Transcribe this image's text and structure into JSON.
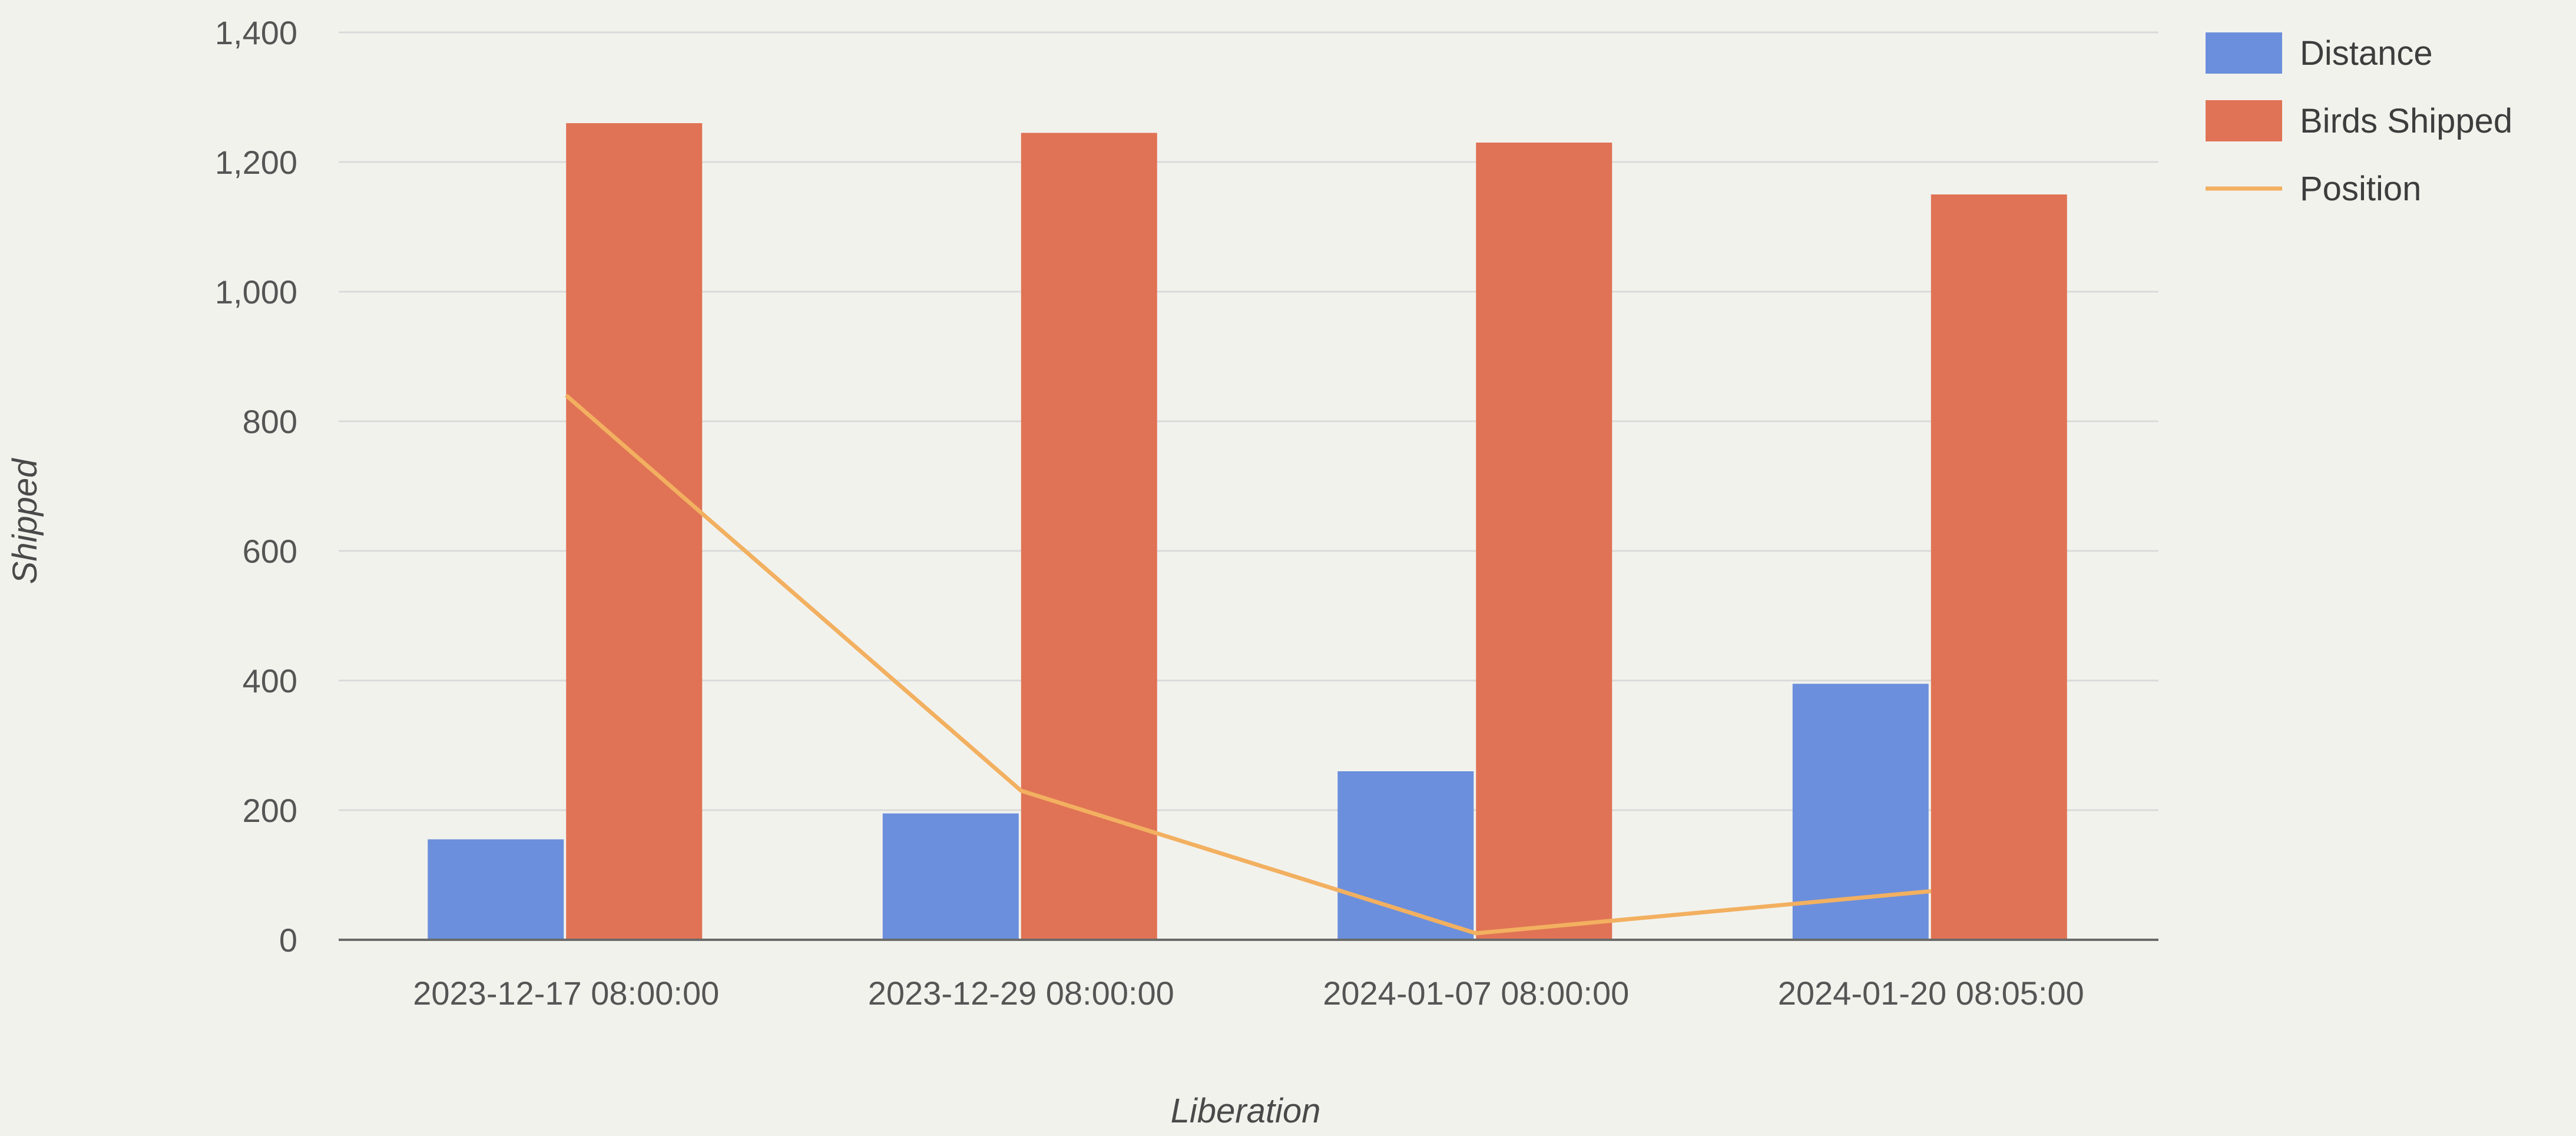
{
  "chart_data": {
    "type": "bar",
    "title": "",
    "xlabel": "Liberation",
    "ylabel": "Shipped",
    "categories": [
      "2023-12-17 08:00:00",
      "2023-12-29 08:00:00",
      "2024-01-07 08:00:00",
      "2024-01-20 08:05:00"
    ],
    "series": [
      {
        "name": "Distance",
        "type": "bar",
        "color": "#6b8fdc",
        "values": [
          155,
          195,
          260,
          395
        ]
      },
      {
        "name": "Birds Shipped",
        "type": "bar",
        "color": "#e07355",
        "values": [
          1260,
          1245,
          1230,
          1150
        ]
      },
      {
        "name": "Position",
        "type": "line",
        "color": "#f2b060",
        "values": [
          840,
          230,
          10,
          75
        ]
      }
    ],
    "ylim": [
      0,
      1400
    ],
    "yticks": [
      0,
      200,
      400,
      600,
      800,
      1000,
      1200,
      1400
    ],
    "ytick_labels": [
      "0",
      "200",
      "400",
      "600",
      "800",
      "1,000",
      "1,200",
      "1,400"
    ],
    "grid": true,
    "legend_position": "top-right"
  }
}
